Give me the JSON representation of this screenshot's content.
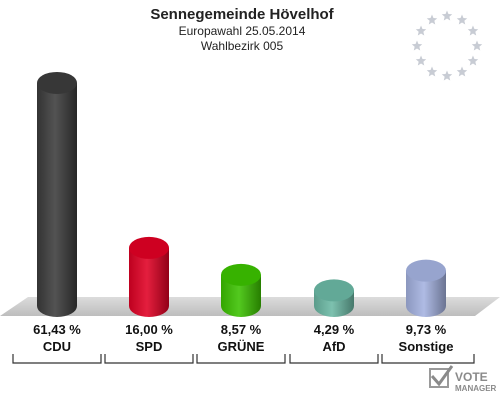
{
  "header": {
    "title": "Sennegemeinde Hövelhof",
    "subtitle1": "Europawahl 25.05.2014",
    "subtitle2": "Wahlbezirk 005"
  },
  "logo": {
    "line1": "VOTE",
    "line2": "MANAGER",
    "icon": "check-ballot-icon"
  },
  "decoration": {
    "icon": "eu-stars-icon",
    "star_color": "#c8ccd4"
  },
  "chart_data": {
    "type": "bar",
    "categories": [
      "CDU",
      "SPD",
      "GRÜNE",
      "AfD",
      "Sonstige"
    ],
    "values": [
      61.43,
      16.0,
      8.57,
      4.29,
      9.73
    ],
    "value_labels": [
      "61,43 %",
      "16,00 %",
      "8,57 %",
      "4,29 %",
      "9,73 %"
    ],
    "colors": [
      "#3c3c3c",
      "#e00024",
      "#3cc200",
      "#6bb8a4",
      "#a4b2e0"
    ],
    "title": "Sennegemeinde Hövelhof",
    "xlabel": "",
    "ylabel": "",
    "ylim": [
      0,
      65
    ],
    "grid": false,
    "legend": "none"
  }
}
